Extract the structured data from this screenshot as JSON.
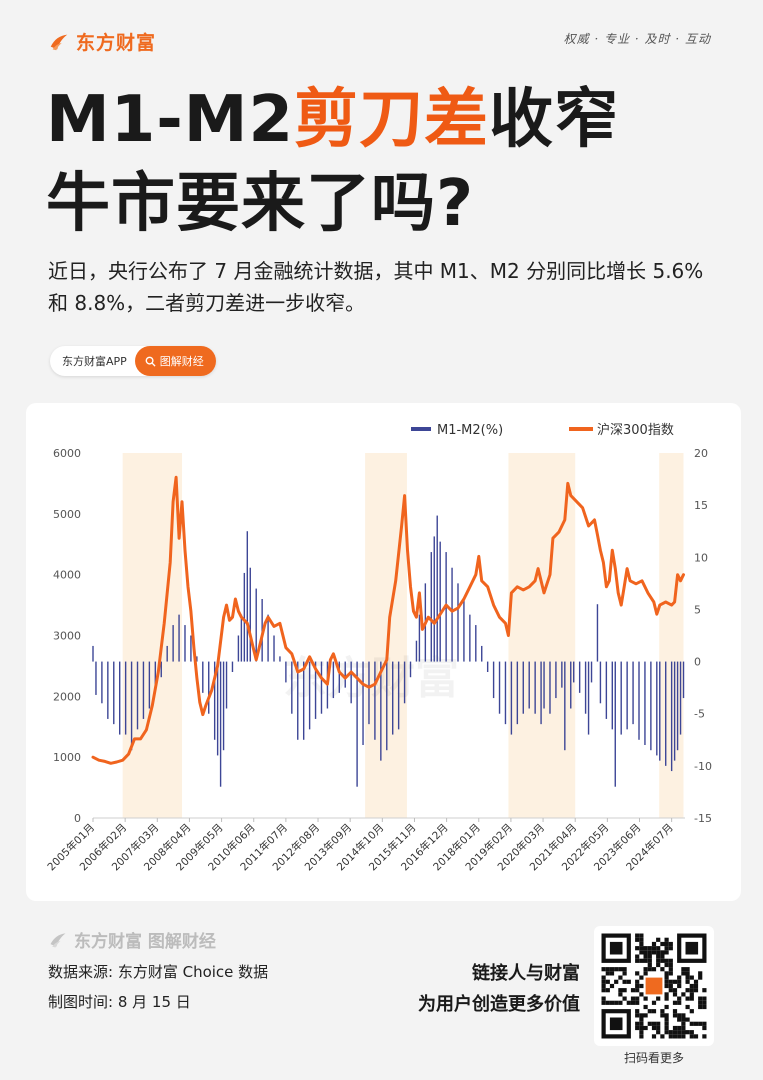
{
  "brand": {
    "name": "东方财富",
    "slogan": "权威 · 专业 · 及时 · 互动"
  },
  "headline": {
    "line1_a": "M1-M2",
    "line1_b": "剪刀差",
    "line1_c": "收窄",
    "line2": "牛市要来了吗?"
  },
  "intro": "近日，央行公布了 7 月金融统计数据，其中 M1、M2 分别同比增长 5.6% 和 8.8%，二者剪刀差进一步收窄。",
  "tag": {
    "source": "东方财富APP",
    "label": "图解财经"
  },
  "footer": {
    "brand": "东方财富 图解财经",
    "data_source": "数据来源: 东方财富 Choice 数据",
    "chart_time": "制图时间: 8 月 15 日",
    "tagline1": "链接人与财富",
    "tagline2": "为用户创造更多价值",
    "qr_caption": "扫码看更多"
  },
  "colors": {
    "accent": "#ef6a1f",
    "bar": "#3d4696",
    "line": "#f0641e",
    "shade": "#fdf1e1"
  },
  "chart_data": {
    "type": "bar+line",
    "watermark": "东方财富",
    "legend": [
      "M1-M2(%)",
      "沪深300指数"
    ],
    "legend_position": "top-right",
    "x_ticks": [
      "2005年01月",
      "2006年02月",
      "2007年03月",
      "2008年04月",
      "2009年05月",
      "2010年06月",
      "2011年07月",
      "2012年08月",
      "2013年09月",
      "2014年10月",
      "2015年11月",
      "2016年12月",
      "2018年01月",
      "2019年02月",
      "2020年03月",
      "2021年04月",
      "2022年05月",
      "2023年06月",
      "2024年07月"
    ],
    "left_axis": {
      "min": 0,
      "max": 6000,
      "ticks": [
        0,
        1000,
        2000,
        3000,
        4000,
        5000,
        6000
      ],
      "series": "沪深300指数"
    },
    "right_axis": {
      "min": -15,
      "max": 20,
      "ticks": [
        -15,
        -10,
        -5,
        0,
        5,
        10,
        15,
        20
      ],
      "series": "M1-M2(%)"
    },
    "shaded_ranges": [
      [
        2006.0,
        2008.0
      ],
      [
        2014.17,
        2015.58
      ],
      [
        2019.0,
        2021.25
      ],
      [
        2024.08,
        2024.9
      ]
    ],
    "series": [
      {
        "name": "M1-M2(%)",
        "kind": "bar",
        "axis": "right",
        "points": [
          [
            2005.0,
            1.5
          ],
          [
            2005.1,
            -3.2
          ],
          [
            2005.3,
            -4.0
          ],
          [
            2005.5,
            -5.5
          ],
          [
            2005.7,
            -6.0
          ],
          [
            2005.9,
            -7.0
          ],
          [
            2006.1,
            -7.0
          ],
          [
            2006.3,
            -8.5
          ],
          [
            2006.5,
            -6.5
          ],
          [
            2006.7,
            -5.5
          ],
          [
            2006.9,
            -4.5
          ],
          [
            2007.1,
            -2.5
          ],
          [
            2007.3,
            -1.5
          ],
          [
            2007.5,
            1.5
          ],
          [
            2007.7,
            3.5
          ],
          [
            2007.9,
            4.5
          ],
          [
            2008.1,
            3.5
          ],
          [
            2008.3,
            2.5
          ],
          [
            2008.5,
            0.5
          ],
          [
            2008.7,
            -3.0
          ],
          [
            2008.9,
            -5.0
          ],
          [
            2009.1,
            -7.5
          ],
          [
            2009.2,
            -9.0
          ],
          [
            2009.3,
            -12.0
          ],
          [
            2009.4,
            -8.5
          ],
          [
            2009.5,
            -4.5
          ],
          [
            2009.7,
            -1.0
          ],
          [
            2009.9,
            2.5
          ],
          [
            2010.0,
            4.5
          ],
          [
            2010.1,
            8.5
          ],
          [
            2010.2,
            12.5
          ],
          [
            2010.3,
            9.0
          ],
          [
            2010.5,
            7.0
          ],
          [
            2010.7,
            6.0
          ],
          [
            2010.9,
            4.5
          ],
          [
            2011.1,
            2.5
          ],
          [
            2011.3,
            0.5
          ],
          [
            2011.5,
            -2.0
          ],
          [
            2011.7,
            -5.0
          ],
          [
            2011.9,
            -7.5
          ],
          [
            2012.1,
            -7.5
          ],
          [
            2012.3,
            -6.5
          ],
          [
            2012.5,
            -5.5
          ],
          [
            2012.7,
            -5.0
          ],
          [
            2012.9,
            -4.5
          ],
          [
            2013.1,
            -3.5
          ],
          [
            2013.3,
            -3.0
          ],
          [
            2013.5,
            -2.5
          ],
          [
            2013.7,
            -4.0
          ],
          [
            2013.9,
            -12.0
          ],
          [
            2014.1,
            -8.0
          ],
          [
            2014.3,
            -6.0
          ],
          [
            2014.5,
            -7.5
          ],
          [
            2014.7,
            -9.5
          ],
          [
            2014.9,
            -8.5
          ],
          [
            2015.1,
            -7.0
          ],
          [
            2015.3,
            -6.5
          ],
          [
            2015.5,
            -4.0
          ],
          [
            2015.7,
            -1.5
          ],
          [
            2015.9,
            2.0
          ],
          [
            2016.0,
            4.5
          ],
          [
            2016.2,
            7.5
          ],
          [
            2016.4,
            10.5
          ],
          [
            2016.5,
            12.0
          ],
          [
            2016.6,
            14.0
          ],
          [
            2016.7,
            11.5
          ],
          [
            2016.9,
            10.5
          ],
          [
            2017.1,
            9.0
          ],
          [
            2017.3,
            7.5
          ],
          [
            2017.5,
            6.0
          ],
          [
            2017.7,
            4.5
          ],
          [
            2017.9,
            3.5
          ],
          [
            2018.1,
            1.5
          ],
          [
            2018.3,
            -1.0
          ],
          [
            2018.5,
            -3.5
          ],
          [
            2018.7,
            -5.0
          ],
          [
            2018.9,
            -6.0
          ],
          [
            2019.1,
            -7.0
          ],
          [
            2019.3,
            -6.0
          ],
          [
            2019.5,
            -5.0
          ],
          [
            2019.7,
            -4.5
          ],
          [
            2019.9,
            -5.0
          ],
          [
            2020.1,
            -6.0
          ],
          [
            2020.2,
            -4.5
          ],
          [
            2020.4,
            -5.0
          ],
          [
            2020.6,
            -3.5
          ],
          [
            2020.8,
            -2.5
          ],
          [
            2020.9,
            -8.5
          ],
          [
            2021.1,
            -4.5
          ],
          [
            2021.2,
            -2.0
          ],
          [
            2021.4,
            -3.0
          ],
          [
            2021.6,
            -5.0
          ],
          [
            2021.7,
            -7.0
          ],
          [
            2021.8,
            -2.0
          ],
          [
            2022.0,
            5.5
          ],
          [
            2022.1,
            -4.0
          ],
          [
            2022.3,
            -5.5
          ],
          [
            2022.5,
            -6.5
          ],
          [
            2022.6,
            -12.0
          ],
          [
            2022.8,
            -7.0
          ],
          [
            2023.0,
            -6.5
          ],
          [
            2023.2,
            -6.0
          ],
          [
            2023.4,
            -7.5
          ],
          [
            2023.6,
            -8.0
          ],
          [
            2023.8,
            -8.5
          ],
          [
            2024.0,
            -9.0
          ],
          [
            2024.1,
            -9.5
          ],
          [
            2024.3,
            -10.0
          ],
          [
            2024.5,
            -10.5
          ],
          [
            2024.6,
            -9.5
          ],
          [
            2024.7,
            -8.5
          ],
          [
            2024.8,
            -7.0
          ],
          [
            2024.9,
            -3.5
          ]
        ]
      },
      {
        "name": "沪深300指数",
        "kind": "line",
        "axis": "left",
        "points": [
          [
            2005.0,
            1000
          ],
          [
            2005.2,
            950
          ],
          [
            2005.4,
            930
          ],
          [
            2005.6,
            900
          ],
          [
            2005.8,
            920
          ],
          [
            2006.0,
            950
          ],
          [
            2006.2,
            1050
          ],
          [
            2006.4,
            1300
          ],
          [
            2006.6,
            1300
          ],
          [
            2006.8,
            1450
          ],
          [
            2007.0,
            1850
          ],
          [
            2007.2,
            2400
          ],
          [
            2007.4,
            3200
          ],
          [
            2007.6,
            4200
          ],
          [
            2007.7,
            5200
          ],
          [
            2007.8,
            5600
          ],
          [
            2007.9,
            4600
          ],
          [
            2008.0,
            5200
          ],
          [
            2008.1,
            4400
          ],
          [
            2008.2,
            3800
          ],
          [
            2008.3,
            3400
          ],
          [
            2008.4,
            2800
          ],
          [
            2008.5,
            2300
          ],
          [
            2008.6,
            1900
          ],
          [
            2008.7,
            1700
          ],
          [
            2008.8,
            1850
          ],
          [
            2009.0,
            2100
          ],
          [
            2009.2,
            2500
          ],
          [
            2009.3,
            2900
          ],
          [
            2009.4,
            3300
          ],
          [
            2009.5,
            3500
          ],
          [
            2009.6,
            3250
          ],
          [
            2009.7,
            3300
          ],
          [
            2009.8,
            3600
          ],
          [
            2009.9,
            3400
          ],
          [
            2010.0,
            3300
          ],
          [
            2010.2,
            3200
          ],
          [
            2010.3,
            3000
          ],
          [
            2010.4,
            2800
          ],
          [
            2010.5,
            2600
          ],
          [
            2010.6,
            2800
          ],
          [
            2010.8,
            3200
          ],
          [
            2010.9,
            3300
          ],
          [
            2011.1,
            3150
          ],
          [
            2011.3,
            3200
          ],
          [
            2011.5,
            2800
          ],
          [
            2011.7,
            2700
          ],
          [
            2011.9,
            2400
          ],
          [
            2012.1,
            2450
          ],
          [
            2012.3,
            2650
          ],
          [
            2012.5,
            2450
          ],
          [
            2012.7,
            2300
          ],
          [
            2012.9,
            2200
          ],
          [
            2013.0,
            2600
          ],
          [
            2013.1,
            2700
          ],
          [
            2013.3,
            2400
          ],
          [
            2013.5,
            2300
          ],
          [
            2013.7,
            2400
          ],
          [
            2013.9,
            2300
          ],
          [
            2014.1,
            2200
          ],
          [
            2014.3,
            2150
          ],
          [
            2014.5,
            2200
          ],
          [
            2014.7,
            2400
          ],
          [
            2014.9,
            2600
          ],
          [
            2015.0,
            3300
          ],
          [
            2015.2,
            3900
          ],
          [
            2015.4,
            4800
          ],
          [
            2015.5,
            5300
          ],
          [
            2015.6,
            4400
          ],
          [
            2015.7,
            3800
          ],
          [
            2015.8,
            3400
          ],
          [
            2015.9,
            3300
          ],
          [
            2016.0,
            3700
          ],
          [
            2016.1,
            3100
          ],
          [
            2016.3,
            3300
          ],
          [
            2016.5,
            3200
          ],
          [
            2016.7,
            3350
          ],
          [
            2016.9,
            3500
          ],
          [
            2017.1,
            3400
          ],
          [
            2017.3,
            3450
          ],
          [
            2017.5,
            3600
          ],
          [
            2017.7,
            3800
          ],
          [
            2017.9,
            4000
          ],
          [
            2018.0,
            4300
          ],
          [
            2018.1,
            3900
          ],
          [
            2018.3,
            3800
          ],
          [
            2018.5,
            3500
          ],
          [
            2018.7,
            3300
          ],
          [
            2018.9,
            3200
          ],
          [
            2019.0,
            3000
          ],
          [
            2019.1,
            3700
          ],
          [
            2019.3,
            3800
          ],
          [
            2019.5,
            3750
          ],
          [
            2019.7,
            3800
          ],
          [
            2019.9,
            3900
          ],
          [
            2020.0,
            4100
          ],
          [
            2020.2,
            3700
          ],
          [
            2020.4,
            4000
          ],
          [
            2020.5,
            4600
          ],
          [
            2020.7,
            4700
          ],
          [
            2020.9,
            4900
          ],
          [
            2021.0,
            5500
          ],
          [
            2021.1,
            5300
          ],
          [
            2021.3,
            5200
          ],
          [
            2021.5,
            5100
          ],
          [
            2021.7,
            4800
          ],
          [
            2021.9,
            4900
          ],
          [
            2022.0,
            4650
          ],
          [
            2022.1,
            4400
          ],
          [
            2022.2,
            4200
          ],
          [
            2022.3,
            3800
          ],
          [
            2022.4,
            3900
          ],
          [
            2022.5,
            4400
          ],
          [
            2022.6,
            4100
          ],
          [
            2022.7,
            3700
          ],
          [
            2022.8,
            3500
          ],
          [
            2022.9,
            3800
          ],
          [
            2023.0,
            4100
          ],
          [
            2023.1,
            3900
          ],
          [
            2023.3,
            3850
          ],
          [
            2023.5,
            3900
          ],
          [
            2023.7,
            3700
          ],
          [
            2023.9,
            3550
          ],
          [
            2024.0,
            3350
          ],
          [
            2024.1,
            3500
          ],
          [
            2024.3,
            3550
          ],
          [
            2024.5,
            3500
          ],
          [
            2024.6,
            3550
          ],
          [
            2024.7,
            4000
          ],
          [
            2024.8,
            3900
          ],
          [
            2024.9,
            4000
          ]
        ]
      }
    ]
  }
}
